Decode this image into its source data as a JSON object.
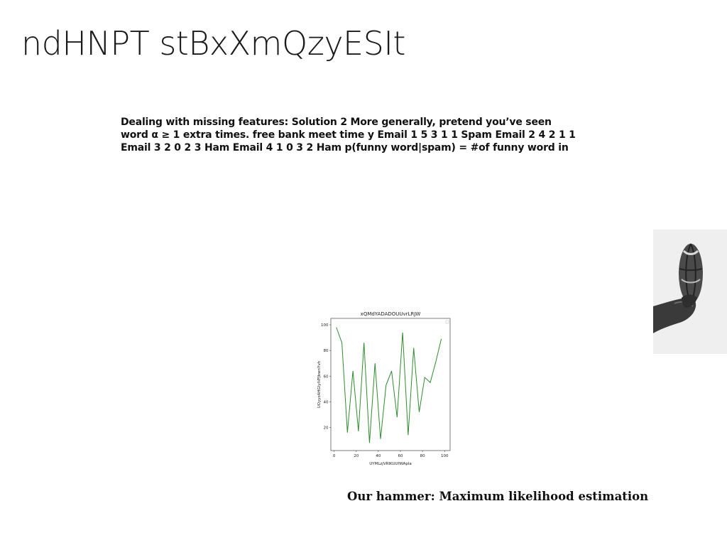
{
  "slide": {
    "title": "ndHNPT stBxXmQzyESIt",
    "body": "Dealing with missing features: Solution 2 More generally, pretend you’ve seen word α ≥ 1 extra times. free bank meet time y Email 1 5 3 1 1 Spam Email 2 4 2 1 1 Email 3 2 0 2 3 Ham Email 4 1 0 3 2 Ham p(funny word|spam) = #of funny word in",
    "caption": "Our hammer: Maximum likelihood estimation"
  },
  "photo": {
    "icon": "basketball-hand-icon"
  },
  "chart_data": {
    "type": "line",
    "title": "xQMdYADADOUUvrLRJW",
    "xlabel": "UYMLzjVRIKUUfWApla",
    "ylabel": "UOyyzAHGIyiVFJbwnYvh",
    "xlim": [
      -3,
      105
    ],
    "ylim": [
      2,
      105
    ],
    "xticks": [
      0,
      20,
      40,
      60,
      80,
      100
    ],
    "yticks": [
      20,
      40,
      60,
      80,
      100
    ],
    "series": [
      {
        "color": "#2e8b2e",
        "x": [
          2,
          7,
          12,
          17,
          22,
          27,
          32,
          37,
          42,
          47,
          52,
          57,
          62,
          67,
          72,
          77,
          82,
          87,
          92,
          97
        ],
        "y": [
          98,
          86,
          16,
          64,
          17,
          86,
          8,
          70,
          11,
          53,
          64,
          28,
          94,
          14,
          82,
          32,
          59,
          55,
          71,
          89
        ]
      }
    ],
    "legend": "top-right"
  }
}
